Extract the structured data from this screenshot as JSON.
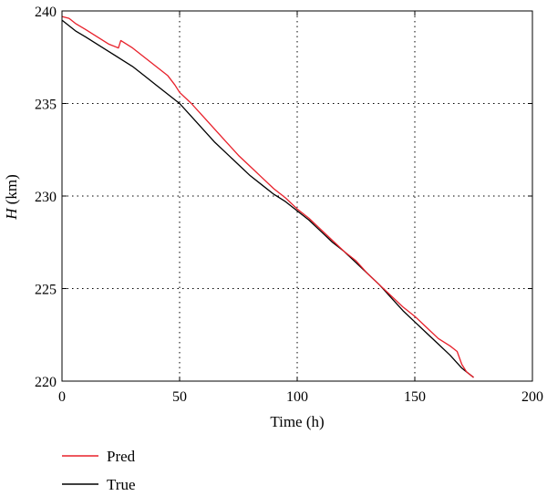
{
  "chart_data": {
    "type": "line",
    "xlabel": "Time (h)",
    "ylabel_italic": "H",
    "ylabel_unit": " (km)",
    "xlim": [
      0,
      200
    ],
    "ylim": [
      220,
      240
    ],
    "xticks": [
      0,
      50,
      100,
      150,
      200
    ],
    "yticks": [
      220,
      225,
      230,
      235,
      240
    ],
    "grid": true,
    "grid_style": "dotted",
    "legend_position": "bottom-left, below plot",
    "series": [
      {
        "name": "Pred",
        "color": "#e8202a",
        "x": [
          0,
          3,
          6,
          10,
          15,
          20,
          24,
          25,
          30,
          35,
          40,
          45,
          48,
          50,
          55,
          60,
          65,
          70,
          75,
          80,
          85,
          90,
          95,
          100,
          105,
          110,
          115,
          120,
          125,
          130,
          135,
          140,
          145,
          150,
          155,
          160,
          165,
          168,
          170,
          172,
          175
        ],
        "values": [
          239.7,
          239.6,
          239.3,
          239.0,
          238.6,
          238.2,
          238.0,
          238.4,
          238.0,
          237.5,
          237.0,
          236.5,
          236.0,
          235.6,
          235.0,
          234.3,
          233.6,
          232.9,
          232.2,
          231.6,
          231.0,
          230.4,
          229.9,
          229.3,
          228.8,
          228.2,
          227.6,
          227.0,
          226.5,
          225.8,
          225.2,
          224.6,
          224.0,
          223.5,
          222.9,
          222.3,
          221.9,
          221.6,
          220.9,
          220.5,
          220.2
        ]
      },
      {
        "name": "True",
        "color": "#000000",
        "x": [
          0,
          3,
          6,
          10,
          15,
          20,
          25,
          30,
          35,
          40,
          45,
          50,
          55,
          60,
          65,
          70,
          75,
          80,
          85,
          90,
          95,
          100,
          105,
          110,
          115,
          120,
          125,
          130,
          135,
          140,
          145,
          150,
          155,
          160,
          165,
          170,
          175
        ],
        "values": [
          239.5,
          239.2,
          238.9,
          238.6,
          238.2,
          237.8,
          237.4,
          237.0,
          236.5,
          236.0,
          235.5,
          235.0,
          234.3,
          233.6,
          232.9,
          232.3,
          231.7,
          231.1,
          230.6,
          230.1,
          229.7,
          229.2,
          228.7,
          228.1,
          227.5,
          227.0,
          226.4,
          225.8,
          225.2,
          224.5,
          223.8,
          223.2,
          222.6,
          222.0,
          221.4,
          220.7,
          220.2
        ]
      }
    ]
  }
}
